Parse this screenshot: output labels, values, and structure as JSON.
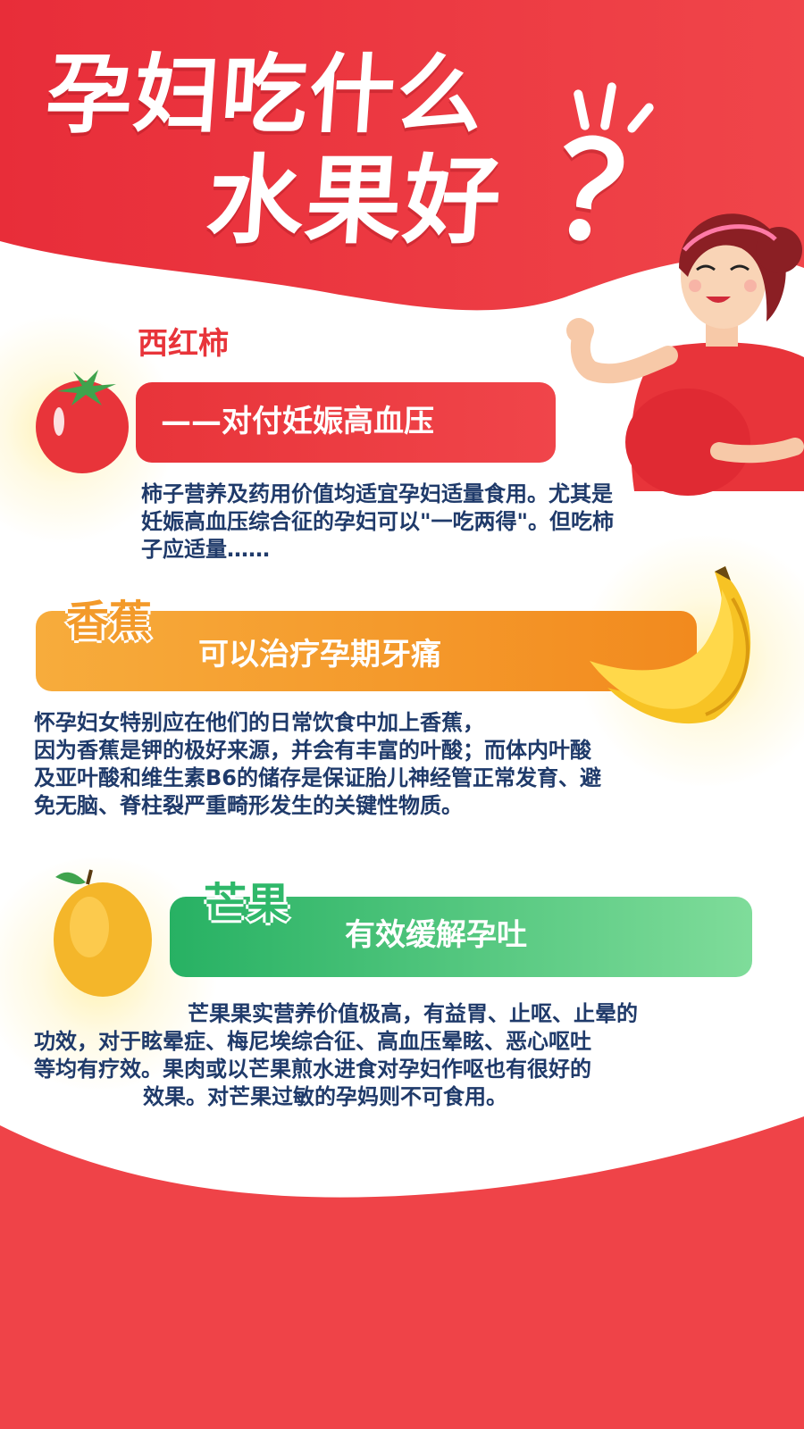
{
  "title": {
    "line1": "孕妇吃什么",
    "line2": "水果好",
    "mark": "？"
  },
  "colors": {
    "red": "#e8343a",
    "orange": "#f39a2a",
    "green": "#2fb86a",
    "text": "#1f3a6a"
  },
  "sections": [
    {
      "fruit": "西红柿",
      "subtitle": "——对付妊娠高血压",
      "body": [
        "柿子营养及药用价值均适宜孕妇适量食用。尤其是",
        "妊娠高血压综合征的孕妇可以\"一吃两得\"。但吃柿",
        "子应适量……"
      ],
      "icon": "tomato-icon"
    },
    {
      "fruit": "香蕉",
      "subtitle": "可以治疗孕期牙痛",
      "body": [
        "怀孕妇女特别应在他们的日常饮食中加上香蕉，",
        "因为香蕉是钾的极好来源，并会有丰富的叶酸；而体内叶酸",
        "及亚叶酸和维生素B6的储存是保证胎儿神经管正常发育、避",
        "免无脑、脊柱裂严重畸形发生的关键性物质。"
      ],
      "icon": "banana-icon"
    },
    {
      "fruit": "芒果",
      "subtitle": "有效缓解孕吐",
      "body": [
        "芒果果实营养价值极高，有益胃、止呕、止晕的",
        "功效，对于眩晕症、梅尼埃综合征、高血压晕眩、恶心呕吐",
        "等均有疗效。果肉或以芒果煎水进食对孕妇作呕也有很好的",
        "效果。对芒果过敏的孕妈则不可食用。"
      ],
      "icon": "mango-icon"
    }
  ]
}
